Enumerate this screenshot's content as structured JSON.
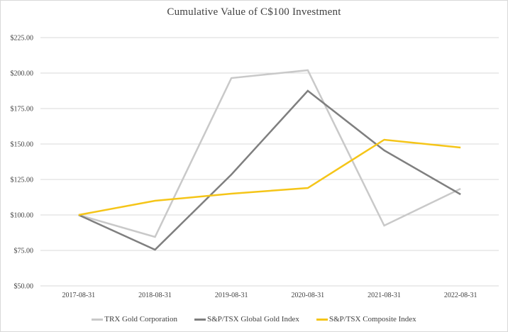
{
  "chart_data": {
    "type": "line",
    "title": "Cumulative Value of C$100 Investment",
    "xlabel": "",
    "ylabel": "",
    "x": [
      "2017-08-31",
      "2018-08-31",
      "2019-08-31",
      "2020-08-31",
      "2021-08-31",
      "2022-08-31"
    ],
    "ylim": [
      50,
      225
    ],
    "yticks": [
      50,
      75,
      100,
      125,
      150,
      175,
      200,
      225
    ],
    "ytick_labels": [
      "$50.00",
      "$75.00",
      "$100.00",
      "$125.00",
      "$150.00",
      "$175.00",
      "$200.00",
      "$225.00"
    ],
    "grid": true,
    "legend_position": "bottom",
    "series": [
      {
        "name": "TRX Gold Corporation",
        "color": "#c9c9c9",
        "values": [
          100,
          84.5,
          196.5,
          202,
          92.5,
          118.5
        ]
      },
      {
        "name": "S&P/TSX Global Gold Index",
        "color": "#7f7f7f",
        "values": [
          100,
          75.5,
          128.5,
          187.5,
          145.5,
          114.5
        ]
      },
      {
        "name": "S&P/TSX Composite Index",
        "color": "#f5c518",
        "values": [
          100,
          110,
          115,
          119,
          153,
          147.5
        ]
      }
    ]
  }
}
